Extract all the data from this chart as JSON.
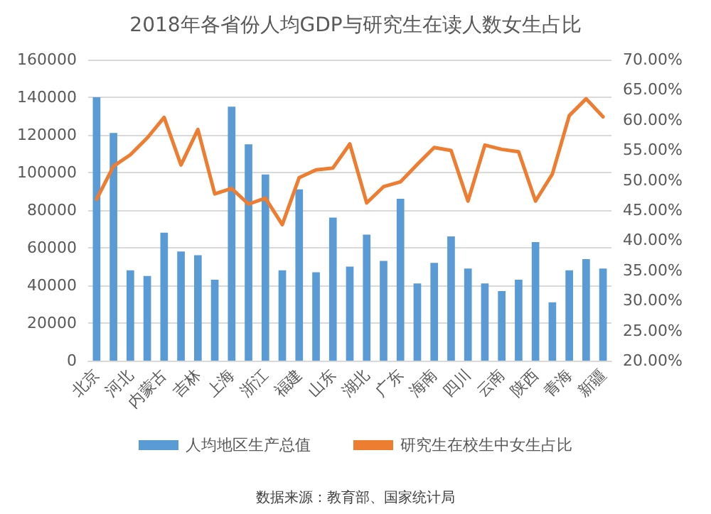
{
  "chart_data": {
    "type": "bar",
    "title": "2018年各省份人均GDP与研究生在读人数女生占比",
    "categories": [
      "北京",
      null,
      "河北",
      null,
      "内蒙古",
      null,
      "吉林",
      null,
      "上海",
      null,
      "浙江",
      null,
      "福建",
      null,
      "山东",
      null,
      "湖北",
      null,
      "广东",
      null,
      "海南",
      null,
      "四川",
      null,
      "云南",
      null,
      "陕西",
      null,
      "青海",
      null,
      "新疆"
    ],
    "series": [
      {
        "name": "人均地区生产总值",
        "color": "#5b9bd5",
        "values": [
          140000,
          121000,
          48000,
          45000,
          68000,
          58000,
          56000,
          43000,
          135000,
          115000,
          99000,
          48000,
          91000,
          47000,
          76000,
          50000,
          67000,
          53000,
          86000,
          41000,
          52000,
          66000,
          49000,
          41000,
          37000,
          43000,
          63000,
          31000,
          48000,
          54000,
          49000
        ]
      },
      {
        "name": "研究生在校生中女生占比",
        "type": "line",
        "axis": "y2",
        "color": "#ed7d31",
        "values": [
          46.8,
          52.3,
          54.2,
          57.0,
          60.4,
          52.5,
          58.4,
          47.7,
          48.6,
          46.0,
          47.0,
          42.6,
          50.4,
          51.7,
          52.0,
          56.0,
          46.2,
          48.9,
          49.7,
          52.6,
          55.4,
          54.9,
          46.5,
          55.8,
          55.1,
          54.7,
          46.5,
          51.0,
          60.7,
          63.5,
          60.5
        ]
      }
    ],
    "ylim": [
      0,
      160000
    ],
    "yticks": [
      0,
      20000,
      40000,
      60000,
      80000,
      100000,
      120000,
      140000,
      160000
    ],
    "y2lim": [
      20,
      70
    ],
    "y2ticks": [
      {
        "value": 20,
        "label": "20.00%"
      },
      {
        "value": 25,
        "label": "25.00%"
      },
      {
        "value": 30,
        "label": "30.00%"
      },
      {
        "value": 35,
        "label": "35.00%"
      },
      {
        "value": 40,
        "label": "40.00%"
      },
      {
        "value": 45,
        "label": "45.00%"
      },
      {
        "value": 50,
        "label": "50.00%"
      },
      {
        "value": 55,
        "label": "55.00%"
      },
      {
        "value": 60,
        "label": "60.00%"
      },
      {
        "value": 65,
        "label": "65.00%"
      },
      {
        "value": 70,
        "label": "70.00%"
      }
    ],
    "grid": "y",
    "legend": "bottom",
    "marker": "none",
    "line_style": "solid",
    "annotations": [
      "数据来源：教育部、国家统计局"
    ]
  }
}
